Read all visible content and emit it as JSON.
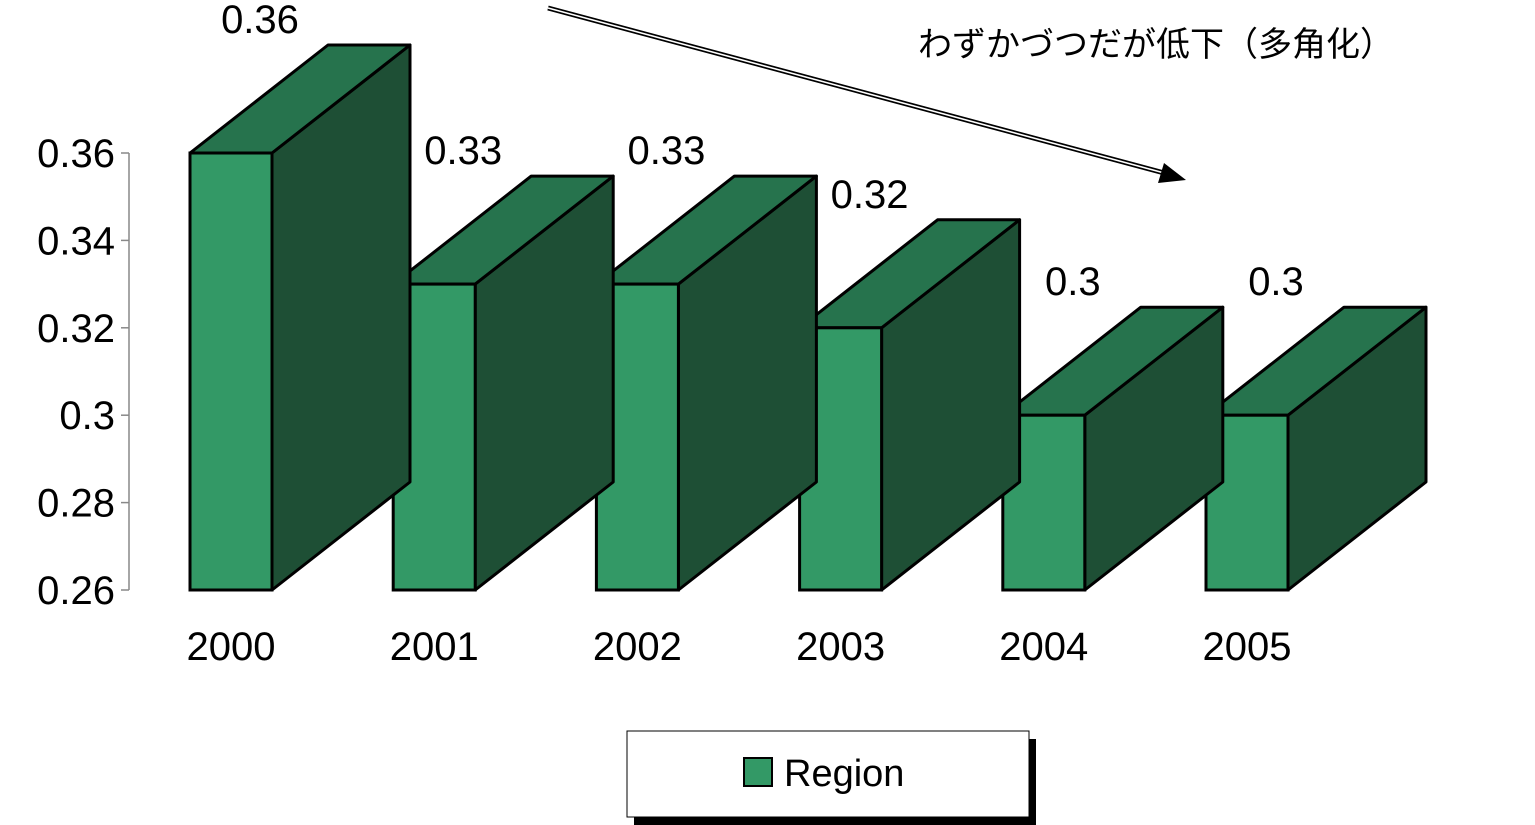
{
  "chart_data": {
    "type": "bar",
    "style": "3d-column",
    "categories": [
      "2000",
      "2001",
      "2002",
      "2003",
      "2004",
      "2005"
    ],
    "series": [
      {
        "name": "Region",
        "values": [
          0.36,
          0.33,
          0.33,
          0.32,
          0.3,
          0.3
        ]
      }
    ],
    "data_labels": [
      "0.36",
      "0.33",
      "0.33",
      "0.32",
      "0.3",
      "0.3"
    ],
    "y_ticks": [
      "0.26",
      "0.28",
      "0.3",
      "0.32",
      "0.34",
      "0.36"
    ],
    "ylim": [
      0.26,
      0.36
    ],
    "grid": false,
    "legend_position": "bottom",
    "annotation": "わずかづつだが低下（多角化）",
    "colors": {
      "front": "#339966",
      "top": "#26734d",
      "side": "#1e4f35",
      "outline": "#000000"
    }
  }
}
